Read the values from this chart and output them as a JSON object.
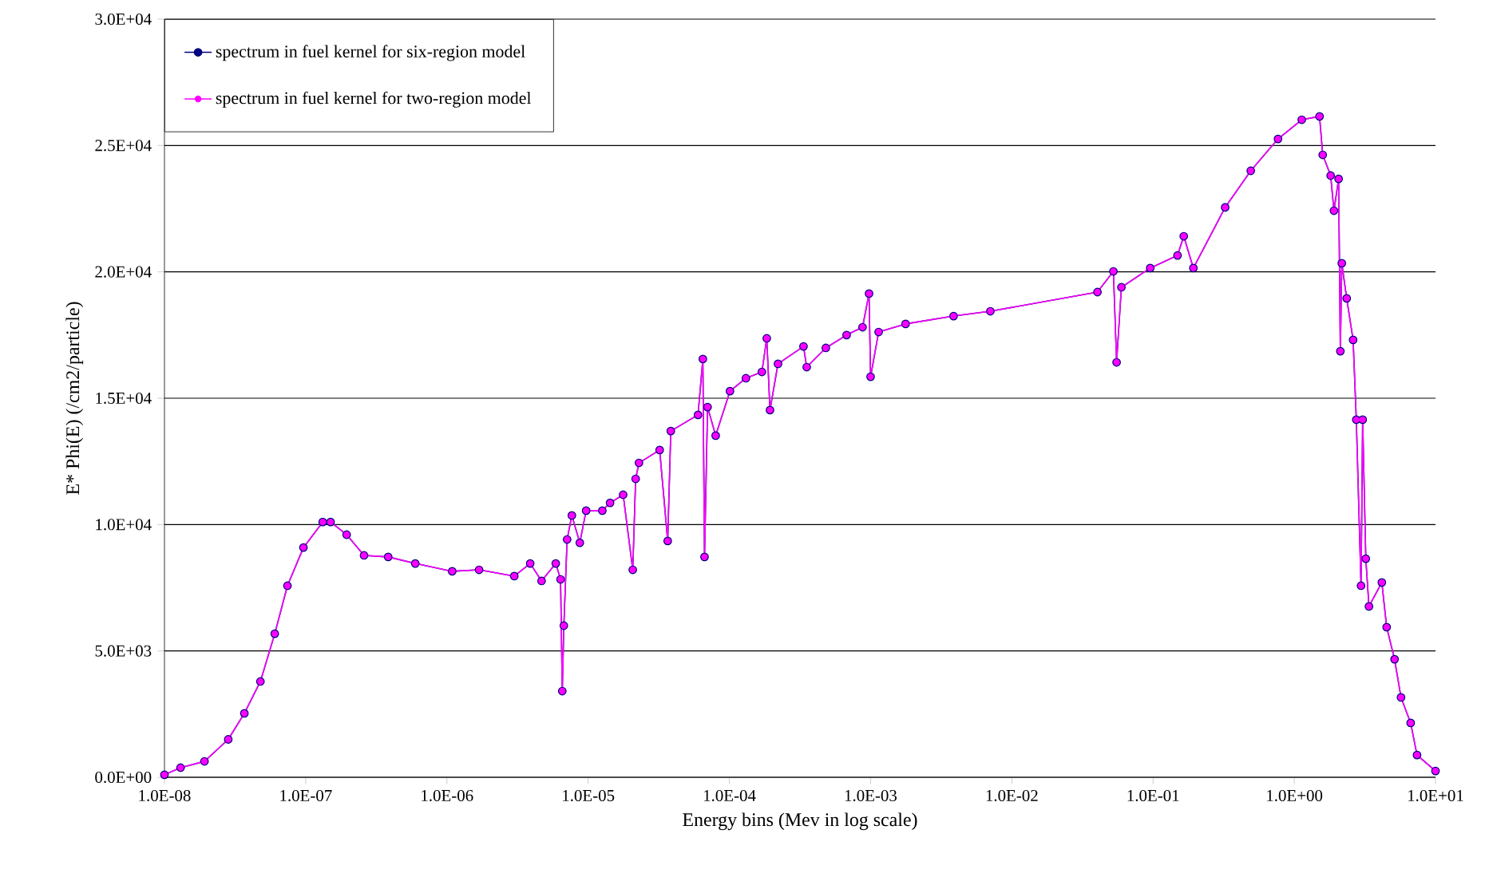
{
  "chart_data": {
    "type": "line",
    "xlabel": "Energy bins (Mev in log scale)",
    "ylabel": "E* Phi(E) (/cm2/particle)",
    "log": "x",
    "grid": "y",
    "legend": "top left",
    "marker": "circle",
    "line_style": "solid",
    "xlim": [
      1e-08,
      10
    ],
    "ylim": [
      0,
      30000
    ],
    "xticks": [
      {
        "value": 1e-08,
        "label": "1.0E-08"
      },
      {
        "value": 1e-07,
        "label": "1.0E-07"
      },
      {
        "value": 1e-06,
        "label": "1.0E-06"
      },
      {
        "value": 1e-05,
        "label": "1.0E-05"
      },
      {
        "value": 0.0001,
        "label": "1.0E-04"
      },
      {
        "value": 0.001,
        "label": "1.0E-03"
      },
      {
        "value": 0.01,
        "label": "1.0E-02"
      },
      {
        "value": 0.1,
        "label": "1.0E-01"
      },
      {
        "value": 1,
        "label": "1.0E+00"
      },
      {
        "value": 10,
        "label": "1.0E+01"
      }
    ],
    "yticks": [
      {
        "value": 0,
        "label": "0.0E+00"
      },
      {
        "value": 5000,
        "label": "5.0E+03"
      },
      {
        "value": 10000,
        "label": "1.0E+04"
      },
      {
        "value": 15000,
        "label": "1.5E+04"
      },
      {
        "value": 20000,
        "label": "2.0E+04"
      },
      {
        "value": 25000,
        "label": "2.5E+04"
      },
      {
        "value": 30000,
        "label": "3.0E+04"
      }
    ],
    "x": [
      1e-08,
      1.3e-08,
      1.92e-08,
      2.83e-08,
      3.68e-08,
      4.78e-08,
      6.04e-08,
      7.43e-08,
      9.64e-08,
      1.32e-07,
      1.5e-07,
      1.95e-07,
      2.59e-07,
      3.84e-07,
      5.97e-07,
      1.09e-06,
      1.69e-06,
      3e-06,
      3.89e-06,
      4.68e-06,
      5.9e-06,
      6.38e-06,
      6.56e-06,
      6.73e-06,
      7.1e-06,
      7.67e-06,
      8.73e-06,
      9.68e-06,
      1.26e-05,
      1.43e-05,
      1.77e-05,
      2.07e-05,
      2.17e-05,
      2.29e-05,
      3.21e-05,
      3.66e-05,
      3.85e-05,
      6e-05,
      6.49e-05,
      6.67e-05,
      7.01e-05,
      8e-05,
      0.000101,
      0.000131,
      0.00017,
      0.000184,
      0.000194,
      0.000221,
      0.000335,
      0.000353,
      0.000482,
      0.000676,
      0.000877,
      0.000975,
      0.001,
      0.00114,
      0.00177,
      0.00387,
      0.00705,
      0.0404,
      0.0524,
      0.0552,
      0.0597,
      0.0955,
      0.149,
      0.165,
      0.193,
      0.324,
      0.492,
      0.767,
      1.13,
      1.51,
      1.59,
      1.81,
      1.91,
      2.06,
      2.12,
      2.17,
      2.35,
      2.61,
      2.75,
      2.97,
      3.05,
      3.21,
      3.38,
      4.17,
      4.51,
      5.13,
      5.7,
      6.67,
      7.4,
      10
    ],
    "series": [
      {
        "name": "spectrum in fuel kernel for six-region model",
        "color": "#000080",
        "values": [
          100,
          380,
          630,
          1500,
          2530,
          3790,
          5680,
          7580,
          9090,
          10100,
          10100,
          9600,
          8780,
          8720,
          8460,
          8150,
          8210,
          7960,
          8460,
          7770,
          8460,
          7830,
          3410,
          6000,
          9410,
          10360,
          9280,
          10550,
          10550,
          10860,
          11180,
          8210,
          11810,
          12440,
          12950,
          9350,
          13700,
          14340,
          16550,
          8720,
          14650,
          13520,
          15280,
          15790,
          16040,
          17370,
          14530,
          16360,
          17050,
          16230,
          16990,
          17500,
          17810,
          19140,
          15850,
          17620,
          17940,
          18250,
          18440,
          19200,
          20020,
          16420,
          19390,
          20150,
          20650,
          21410,
          20150,
          22550,
          24000,
          25260,
          26020,
          26150,
          24630,
          23810,
          22420,
          23680,
          16860,
          20340,
          18950,
          17310,
          14150,
          7580,
          14150,
          8650,
          6760,
          7710,
          5940,
          4670,
          3160,
          2150,
          880,
          250
        ]
      },
      {
        "name": "spectrum in fuel kernel for two-region model",
        "color": "#ff00ff",
        "values": [
          100,
          380,
          630,
          1500,
          2530,
          3790,
          5680,
          7580,
          9090,
          10100,
          10100,
          9600,
          8780,
          8720,
          8460,
          8150,
          8210,
          7960,
          8460,
          7770,
          8460,
          7830,
          3410,
          6000,
          9410,
          10360,
          9280,
          10550,
          10550,
          10860,
          11180,
          8210,
          11810,
          12440,
          12950,
          9350,
          13700,
          14340,
          16550,
          8720,
          14650,
          13520,
          15280,
          15790,
          16040,
          17370,
          14530,
          16360,
          17050,
          16230,
          16990,
          17500,
          17810,
          19140,
          15850,
          17620,
          17940,
          18250,
          18440,
          19200,
          20020,
          16420,
          19390,
          20150,
          20650,
          21410,
          20150,
          22550,
          24000,
          25260,
          26020,
          26150,
          24630,
          23810,
          22420,
          23680,
          16860,
          20340,
          18950,
          17310,
          14150,
          7580,
          14150,
          8650,
          6760,
          7710,
          5940,
          4670,
          3160,
          2150,
          880,
          250
        ]
      }
    ]
  }
}
